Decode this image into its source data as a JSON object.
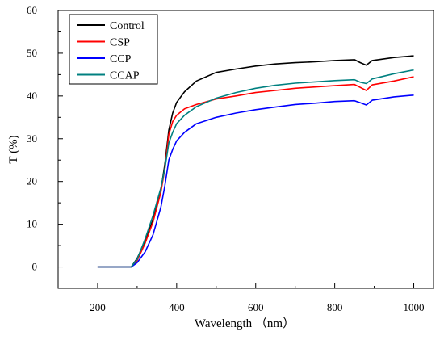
{
  "chart_data": {
    "type": "line",
    "title": "",
    "xlabel": "Wavelength （nm）",
    "ylabel": "T (%)",
    "xlim": [
      100,
      1050
    ],
    "ylim": [
      -5,
      60
    ],
    "x_ticks": [
      200,
      400,
      600,
      800,
      1000
    ],
    "x_tick_labels": [
      "200",
      "400",
      "600",
      "800",
      "1000"
    ],
    "y_ticks": [
      0,
      10,
      20,
      30,
      40,
      50,
      60
    ],
    "y_tick_labels": [
      "0",
      "10",
      "20",
      "30",
      "40",
      "50",
      "60"
    ],
    "grid": false,
    "legend_position": "top-left",
    "series": [
      {
        "name": "Control",
        "color": "#000000",
        "x": [
          200,
          285,
          300,
          320,
          340,
          360,
          370,
          380,
          390,
          400,
          420,
          450,
          500,
          550,
          600,
          650,
          700,
          750,
          800,
          850,
          865,
          880,
          895,
          950,
          1000
        ],
        "y": [
          0,
          0,
          2,
          6,
          11,
          18,
          24,
          32,
          36,
          38.5,
          41,
          43.5,
          45.5,
          46.3,
          47,
          47.5,
          47.8,
          48,
          48.3,
          48.5,
          47.8,
          47.2,
          48.3,
          49,
          49.4
        ]
      },
      {
        "name": "CSP",
        "color": "#ff0000",
        "x": [
          200,
          285,
          300,
          320,
          340,
          360,
          370,
          380,
          390,
          400,
          420,
          450,
          500,
          550,
          600,
          650,
          700,
          750,
          800,
          850,
          865,
          880,
          895,
          950,
          1000
        ],
        "y": [
          0,
          0,
          1.5,
          5.5,
          10.5,
          17.5,
          23,
          31,
          34,
          35.5,
          37,
          38,
          39.3,
          40,
          40.8,
          41.3,
          41.8,
          42.1,
          42.4,
          42.7,
          42,
          41.3,
          42.6,
          43.5,
          44.5
        ]
      },
      {
        "name": "CCP",
        "color": "#0000ff",
        "x": [
          200,
          285,
          300,
          320,
          340,
          360,
          370,
          380,
          390,
          400,
          420,
          450,
          500,
          550,
          600,
          650,
          700,
          750,
          800,
          850,
          865,
          880,
          895,
          950,
          1000
        ],
        "y": [
          0,
          0,
          1,
          3.5,
          7.5,
          14,
          19,
          25,
          27.5,
          29.5,
          31.5,
          33.5,
          35,
          36,
          36.8,
          37.4,
          38,
          38.3,
          38.7,
          38.9,
          38.4,
          37.9,
          39,
          39.8,
          40.2
        ]
      },
      {
        "name": "CCAP",
        "color": "#008080",
        "x": [
          200,
          285,
          300,
          320,
          340,
          360,
          370,
          380,
          390,
          400,
          420,
          450,
          500,
          550,
          600,
          650,
          700,
          750,
          800,
          850,
          865,
          880,
          895,
          950,
          1000
        ],
        "y": [
          0,
          0,
          1.8,
          6.5,
          12,
          18.5,
          23,
          29,
          31.5,
          33.5,
          35.5,
          37.5,
          39.5,
          40.8,
          41.8,
          42.5,
          43,
          43.3,
          43.6,
          43.8,
          43.2,
          42.9,
          44,
          45.2,
          46.1
        ]
      }
    ]
  }
}
